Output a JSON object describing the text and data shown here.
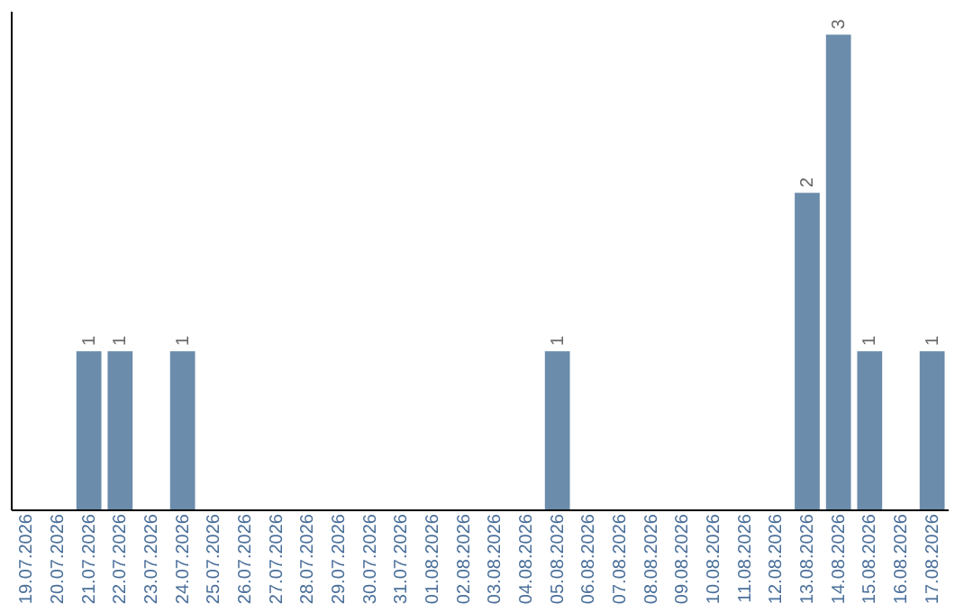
{
  "chart_data": {
    "type": "bar",
    "categories": [
      "19.07.2026",
      "20.07.2026",
      "21.07.2026",
      "22.07.2026",
      "23.07.2026",
      "24.07.2026",
      "25.07.2026",
      "26.07.2026",
      "27.07.2026",
      "28.07.2026",
      "29.07.2026",
      "30.07.2026",
      "31.07.2026",
      "01.08.2026",
      "02.08.2026",
      "03.08.2026",
      "04.08.2026",
      "05.08.2026",
      "06.08.2026",
      "07.08.2026",
      "08.08.2026",
      "09.08.2026",
      "10.08.2026",
      "11.08.2026",
      "12.08.2026",
      "13.08.2026",
      "14.08.2026",
      "15.08.2026",
      "16.08.2026",
      "17.08.2026"
    ],
    "values": [
      0,
      0,
      1,
      1,
      0,
      1,
      0,
      0,
      0,
      0,
      0,
      0,
      0,
      0,
      0,
      0,
      0,
      1,
      0,
      0,
      0,
      0,
      0,
      0,
      0,
      2,
      3,
      1,
      0,
      1
    ],
    "value_labels": [
      null,
      null,
      "1",
      "1",
      null,
      "1",
      null,
      null,
      null,
      null,
      null,
      null,
      null,
      null,
      null,
      null,
      null,
      "1",
      null,
      null,
      null,
      null,
      null,
      null,
      null,
      "2",
      "3",
      "1",
      null,
      "1"
    ],
    "color": "#6b8cab",
    "ylim": [
      0,
      3.15
    ],
    "tick_labels": "x",
    "grid": false
  }
}
